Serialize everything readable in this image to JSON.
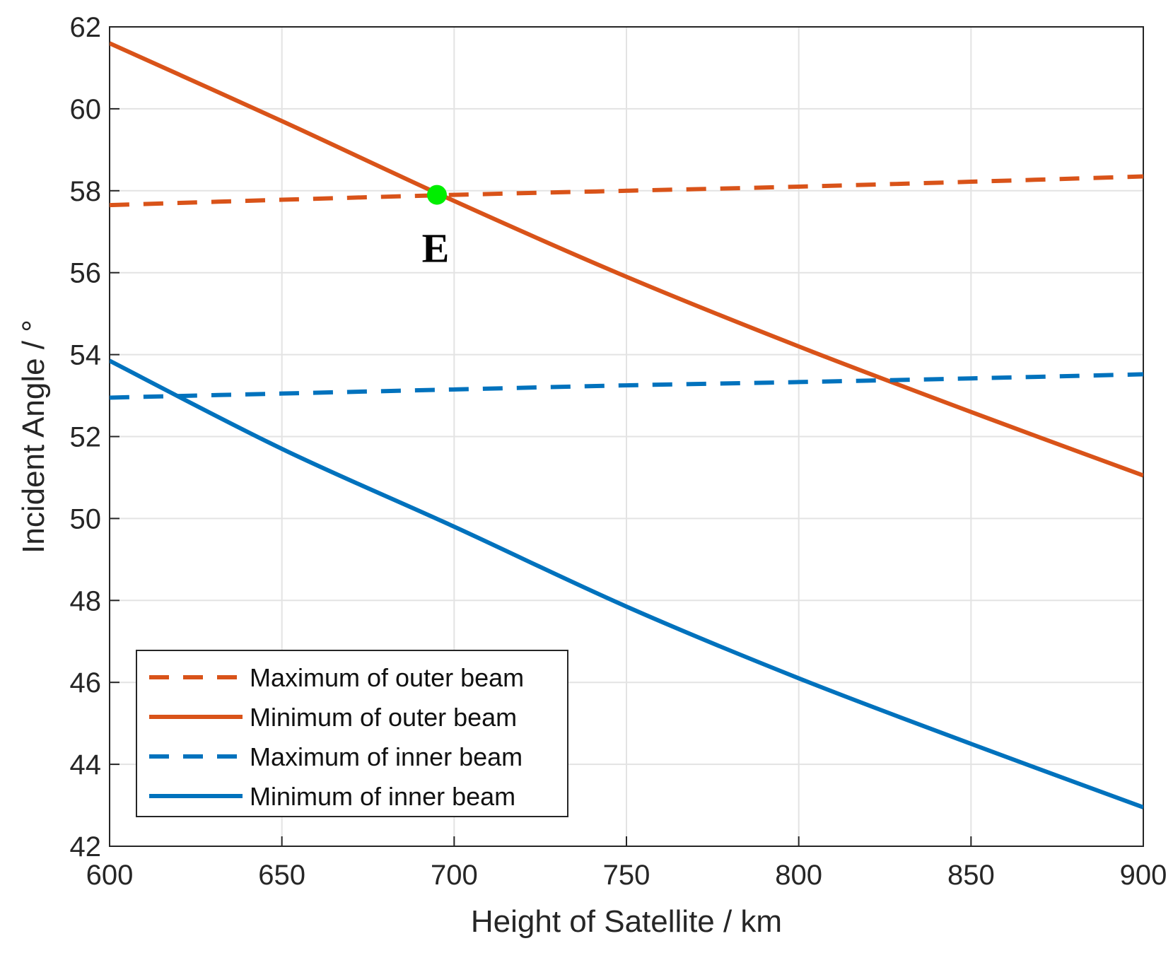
{
  "chart_data": {
    "type": "line",
    "title": "",
    "xlabel": "Height  of  Satellite / km",
    "ylabel": "Incident  Angle  / °",
    "xlim": [
      600,
      900
    ],
    "ylim": [
      42,
      62
    ],
    "xticks": [
      600,
      650,
      700,
      750,
      800,
      850,
      900
    ],
    "yticks": [
      42,
      44,
      46,
      48,
      50,
      52,
      54,
      56,
      58,
      60,
      62
    ],
    "grid": true,
    "legend_position": "bottom-left",
    "series": [
      {
        "name": "Maximum of outer beam",
        "color": "#D95319",
        "style": "dashed",
        "x": [
          600,
          650,
          700,
          750,
          800,
          850,
          900
        ],
        "y": [
          57.65,
          57.78,
          57.9,
          58.0,
          58.1,
          58.22,
          58.35
        ]
      },
      {
        "name": "Minimum of outer beam",
        "color": "#D95319",
        "style": "solid",
        "x": [
          600,
          650,
          700,
          750,
          800,
          850,
          900
        ],
        "y": [
          61.6,
          59.7,
          57.75,
          55.9,
          54.2,
          52.6,
          51.05
        ]
      },
      {
        "name": "Maximum of inner beam",
        "color": "#0072BD",
        "style": "dashed",
        "x": [
          600,
          650,
          700,
          750,
          800,
          850,
          900
        ],
        "y": [
          52.95,
          53.05,
          53.15,
          53.25,
          53.33,
          53.42,
          53.52
        ]
      },
      {
        "name": "Minimum of inner beam",
        "color": "#0072BD",
        "style": "solid",
        "x": [
          600,
          650,
          700,
          750,
          800,
          850,
          900
        ],
        "y": [
          53.85,
          51.7,
          49.8,
          47.85,
          46.1,
          44.5,
          42.95
        ]
      }
    ],
    "annotations": [
      {
        "label": "E",
        "x": 695,
        "y": 57.9,
        "marker_color": "#00EE00"
      }
    ]
  }
}
